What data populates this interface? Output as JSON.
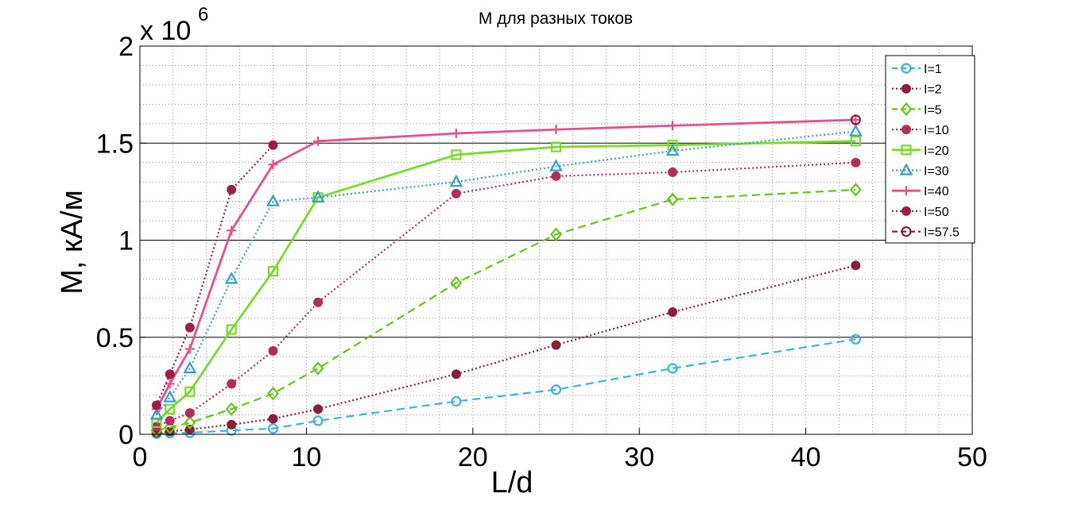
{
  "chart_data": {
    "type": "line",
    "title": "M  для разных токов",
    "xlabel": "L/d",
    "ylabel": "M, кА/м",
    "y_multiplier": "x 10",
    "y_exponent": "6",
    "xlim": [
      0,
      50
    ],
    "ylim": [
      0,
      2000000
    ],
    "xticks": [
      0,
      10,
      20,
      30,
      40,
      50
    ],
    "xtick_labels": [
      "0",
      "10",
      "20",
      "30",
      "40",
      "50"
    ],
    "yticks": [
      0,
      500000,
      1000000,
      1500000,
      2000000
    ],
    "ytick_labels": [
      "0",
      "0.5",
      "1",
      "1.5",
      "2"
    ],
    "grid": "on",
    "legend_position": "top-right",
    "series": [
      {
        "name": "I=1",
        "color": "#3cb4dc",
        "dash": "dashed",
        "marker": "circle-open",
        "x": [
          1,
          1.8,
          3,
          5.5,
          8,
          10.7,
          19,
          25,
          32,
          43
        ],
        "y": [
          3000,
          6000,
          8000,
          20000,
          30000,
          70000,
          170000,
          230000,
          340000,
          490000
        ]
      },
      {
        "name": "I=2",
        "color": "#8c1e3c",
        "dash": "dotted",
        "marker": "dot",
        "x": [
          1,
          1.8,
          3,
          5.5,
          8,
          10.7,
          19,
          25,
          32,
          43
        ],
        "y": [
          8000,
          15000,
          25000,
          50000,
          80000,
          130000,
          310000,
          460000,
          630000,
          870000
        ]
      },
      {
        "name": "I=5",
        "color": "#64c814",
        "dash": "dashed",
        "marker": "diamond",
        "x": [
          1,
          1.8,
          3,
          5.5,
          8,
          10.7,
          19,
          25,
          32,
          43
        ],
        "y": [
          20000,
          35000,
          60000,
          130000,
          210000,
          340000,
          780000,
          1030000,
          1210000,
          1260000
        ]
      },
      {
        "name": "I=10",
        "color": "#b42d5a",
        "dash": "dotted",
        "marker": "dot",
        "x": [
          1,
          1.8,
          3,
          5.5,
          8,
          10.7,
          19,
          25,
          32,
          43
        ],
        "y": [
          40000,
          70000,
          110000,
          260000,
          430000,
          680000,
          1240000,
          1330000,
          1350000,
          1400000
        ]
      },
      {
        "name": "I=20",
        "color": "#78dc28",
        "dash": "solid",
        "marker": "square",
        "x": [
          1,
          1.8,
          3,
          5.5,
          8,
          10.7,
          19,
          25,
          32,
          43
        ],
        "y": [
          60000,
          130000,
          220000,
          540000,
          840000,
          1220000,
          1440000,
          1480000,
          1490000,
          1510000
        ]
      },
      {
        "name": "I=30",
        "color": "#32a0d2",
        "dash": "dotted",
        "marker": "triangle",
        "x": [
          1,
          1.8,
          3,
          5.5,
          8,
          10.7,
          19,
          25,
          32,
          43
        ],
        "y": [
          100000,
          190000,
          340000,
          800000,
          1200000,
          1220000,
          1300000,
          1380000,
          1460000,
          1560000
        ]
      },
      {
        "name": "I=40",
        "color": "#e6508c",
        "dash": "solid",
        "marker": "plus",
        "x": [
          1,
          1.8,
          3,
          5.5,
          8,
          10.7,
          19,
          25,
          32,
          43
        ],
        "y": [
          130000,
          260000,
          440000,
          1050000,
          1390000,
          1510000,
          1550000,
          1570000,
          1590000,
          1620000
        ]
      },
      {
        "name": "I=50",
        "color": "#a01e46",
        "dash": "dotted",
        "marker": "dot",
        "x": [
          1,
          1.8,
          3,
          5.5,
          8
        ],
        "y": [
          150000,
          310000,
          550000,
          1260000,
          1490000
        ]
      },
      {
        "name": "I=57.5",
        "color": "#8c1e46",
        "dash": "dashed",
        "marker": "circle-open",
        "x": [
          43
        ],
        "y": [
          1620000
        ]
      }
    ]
  }
}
